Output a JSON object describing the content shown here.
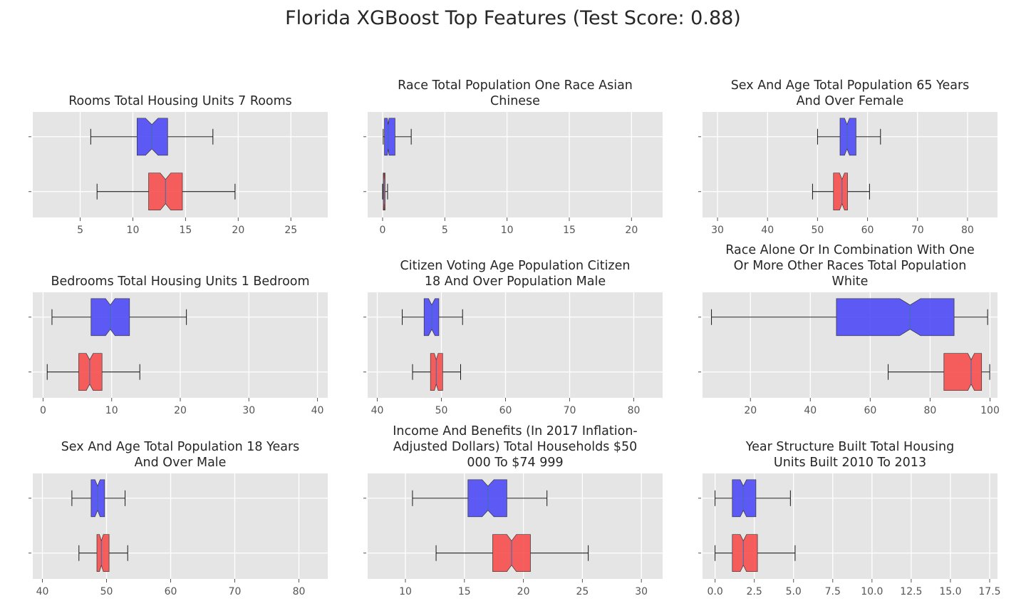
{
  "title": "Florida XGBoost Top Features (Test Score: 0.88)",
  "colors": {
    "background": "#E5E5E5",
    "grid": "#FFFFFF",
    "blue": "#4A45F7",
    "red": "#F74A4A",
    "tick_text": "#555555"
  },
  "chart_data": [
    {
      "type": "box",
      "title_lines": [
        "Rooms Total Housing Units 7 Rooms"
      ],
      "xlim": [
        0.5,
        28.5
      ],
      "xticks": [
        5,
        10,
        15,
        20,
        25
      ],
      "xtick_labels": [
        "5",
        "10",
        "15",
        "20",
        "25"
      ],
      "boxes": [
        {
          "color": "blue",
          "whisker_low": 6.0,
          "q1": 10.4,
          "median": 11.8,
          "notch_low": 11.2,
          "notch_high": 12.4,
          "q3": 13.3,
          "whisker_high": 17.6
        },
        {
          "color": "red",
          "whisker_low": 6.6,
          "q1": 11.5,
          "median": 13.1,
          "notch_low": 12.6,
          "notch_high": 13.6,
          "q3": 14.7,
          "whisker_high": 19.7
        }
      ]
    },
    {
      "type": "box",
      "title_lines": [
        "Race Total Population One Race Asian",
        "Chinese"
      ],
      "xlim": [
        -1.2,
        22.5
      ],
      "xticks": [
        0,
        5,
        10,
        15,
        20
      ],
      "xtick_labels": [
        "0",
        "5",
        "10",
        "15",
        "20"
      ],
      "boxes": [
        {
          "color": "blue",
          "whisker_low": 0.05,
          "q1": 0.15,
          "median": 0.45,
          "notch_low": 0.38,
          "notch_high": 0.52,
          "q3": 1.0,
          "whisker_high": 2.3
        },
        {
          "color": "red",
          "whisker_low": 0.0,
          "q1": 0.05,
          "median": 0.12,
          "notch_low": 0.1,
          "notch_high": 0.14,
          "q3": 0.2,
          "whisker_high": 0.4
        }
      ]
    },
    {
      "type": "box",
      "title_lines": [
        "Sex And Age Total Population 65 Years",
        "And Over Female"
      ],
      "xlim": [
        27,
        86
      ],
      "xticks": [
        30,
        40,
        50,
        60,
        70,
        80
      ],
      "xtick_labels": [
        "30",
        "40",
        "50",
        "60",
        "70",
        "80"
      ],
      "boxes": [
        {
          "color": "blue",
          "whisker_low": 50.0,
          "q1": 54.5,
          "median": 55.9,
          "notch_low": 55.4,
          "notch_high": 56.4,
          "q3": 57.7,
          "whisker_high": 62.6
        },
        {
          "color": "red",
          "whisker_low": 49.0,
          "q1": 53.2,
          "median": 54.9,
          "notch_low": 54.4,
          "notch_high": 55.4,
          "q3": 56.0,
          "whisker_high": 60.4
        }
      ]
    },
    {
      "type": "box",
      "title_lines": [
        "Bedrooms Total Housing Units 1 Bedroom"
      ],
      "xlim": [
        -1.5,
        41.5
      ],
      "xticks": [
        0,
        10,
        20,
        30,
        40
      ],
      "xtick_labels": [
        "0",
        "10",
        "20",
        "30",
        "40"
      ],
      "boxes": [
        {
          "color": "blue",
          "whisker_low": 1.3,
          "q1": 7.0,
          "median": 9.8,
          "notch_low": 9.1,
          "notch_high": 10.5,
          "q3": 12.6,
          "whisker_high": 20.9
        },
        {
          "color": "red",
          "whisker_low": 0.6,
          "q1": 5.2,
          "median": 6.8,
          "notch_low": 6.3,
          "notch_high": 7.3,
          "q3": 8.6,
          "whisker_high": 14.1
        }
      ]
    },
    {
      "type": "box",
      "title_lines": [
        "Citizen Voting Age Population Citizen",
        "18 And Over Population Male"
      ],
      "xlim": [
        38.5,
        84.5
      ],
      "xticks": [
        40,
        50,
        60,
        70,
        80
      ],
      "xtick_labels": [
        "40",
        "50",
        "60",
        "70",
        "80"
      ],
      "boxes": [
        {
          "color": "blue",
          "whisker_low": 43.9,
          "q1": 47.3,
          "median": 48.5,
          "notch_low": 48.0,
          "notch_high": 49.0,
          "q3": 49.6,
          "whisker_high": 53.3
        },
        {
          "color": "red",
          "whisker_low": 45.5,
          "q1": 48.3,
          "median": 49.2,
          "notch_low": 48.9,
          "notch_high": 49.5,
          "q3": 50.2,
          "whisker_high": 53.0
        }
      ]
    },
    {
      "type": "box",
      "title_lines": [
        "Race Alone Or In Combination With One",
        "Or More Other Races Total Population",
        "White"
      ],
      "xlim": [
        4,
        102.5
      ],
      "xticks": [
        20,
        40,
        60,
        80,
        100
      ],
      "xtick_labels": [
        "20",
        "40",
        "60",
        "80",
        "100"
      ],
      "boxes": [
        {
          "color": "blue",
          "whisker_low": 7.0,
          "q1": 48.7,
          "median": 73.3,
          "notch_low": 69.8,
          "notch_high": 76.8,
          "q3": 88.0,
          "whisker_high": 99.2
        },
        {
          "color": "red",
          "whisker_low": 66.0,
          "q1": 84.6,
          "median": 93.7,
          "notch_low": 92.6,
          "notch_high": 94.8,
          "q3": 97.2,
          "whisker_high": 99.9
        }
      ]
    },
    {
      "type": "box",
      "title_lines": [
        "Sex And Age Total Population 18 Years",
        "And Over Male"
      ],
      "xlim": [
        38.5,
        84.5
      ],
      "xticks": [
        40,
        50,
        60,
        70,
        80
      ],
      "xtick_labels": [
        "40",
        "50",
        "60",
        "70",
        "80"
      ],
      "boxes": [
        {
          "color": "blue",
          "whisker_low": 44.6,
          "q1": 47.6,
          "median": 48.6,
          "notch_low": 48.2,
          "notch_high": 49.0,
          "q3": 49.7,
          "whisker_high": 52.9
        },
        {
          "color": "red",
          "whisker_low": 45.7,
          "q1": 48.5,
          "median": 49.2,
          "notch_low": 48.9,
          "notch_high": 49.5,
          "q3": 50.4,
          "whisker_high": 53.3
        }
      ]
    },
    {
      "type": "box",
      "title_lines": [
        "Income And Benefits (In 2017 Inflation-",
        "Adjusted Dollars) Total Households $50",
        "000 To $74 999"
      ],
      "xlim": [
        6.8,
        31.8
      ],
      "xticks": [
        10,
        15,
        20,
        25,
        30
      ],
      "xtick_labels": [
        "10",
        "15",
        "20",
        "25",
        "30"
      ],
      "boxes": [
        {
          "color": "blue",
          "whisker_low": 10.6,
          "q1": 15.3,
          "median": 17.0,
          "notch_low": 16.5,
          "notch_high": 17.5,
          "q3": 18.6,
          "whisker_high": 22.0
        },
        {
          "color": "red",
          "whisker_low": 12.6,
          "q1": 17.4,
          "median": 19.0,
          "notch_low": 18.6,
          "notch_high": 19.4,
          "q3": 20.6,
          "whisker_high": 25.5
        }
      ]
    },
    {
      "type": "box",
      "title_lines": [
        "Year Structure Built Total Housing",
        "Units Built 2010 To 2013"
      ],
      "xlim": [
        -0.8,
        18.0
      ],
      "xticks": [
        0,
        2.5,
        5,
        7.5,
        10,
        12.5,
        15,
        17.5
      ],
      "xtick_labels": [
        "0.0",
        "2.5",
        "5.0",
        "7.5",
        "10.0",
        "12.5",
        "15.0",
        "17.5"
      ],
      "boxes": [
        {
          "color": "blue",
          "whisker_low": 0.0,
          "q1": 1.1,
          "median": 1.8,
          "notch_low": 1.6,
          "notch_high": 2.0,
          "q3": 2.6,
          "whisker_high": 4.8
        },
        {
          "color": "red",
          "whisker_low": 0.0,
          "q1": 1.1,
          "median": 1.8,
          "notch_low": 1.6,
          "notch_high": 2.0,
          "q3": 2.7,
          "whisker_high": 5.1
        }
      ]
    }
  ]
}
